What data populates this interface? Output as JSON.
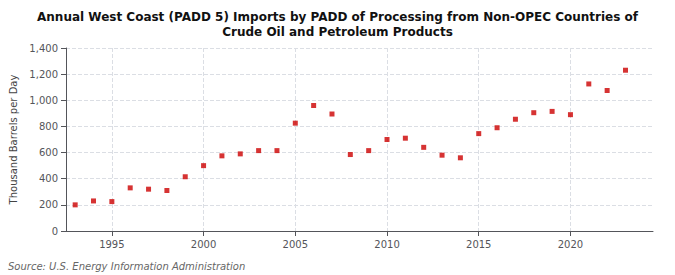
{
  "chart_data": {
    "type": "scatter",
    "title": "Annual West Coast (PADD 5) Imports by PADD of Processing from Non-OPEC Countries of\nCrude Oil and Petroleum Products",
    "ylabel": "Thousand Barrels per Day",
    "annotations": [
      "Source: U.S. Energy Information Administration"
    ],
    "x": [
      1993,
      1994,
      1995,
      1996,
      1997,
      1998,
      1999,
      2000,
      2001,
      2002,
      2003,
      2004,
      2005,
      2006,
      2007,
      2008,
      2009,
      2010,
      2011,
      2012,
      2013,
      2014,
      2015,
      2016,
      2017,
      2018,
      2019,
      2020,
      2021,
      2022,
      2023
    ],
    "values": [
      200,
      230,
      225,
      330,
      320,
      310,
      415,
      500,
      575,
      590,
      615,
      615,
      825,
      960,
      895,
      585,
      615,
      700,
      710,
      640,
      580,
      560,
      745,
      790,
      855,
      905,
      915,
      890,
      1125,
      1075,
      1230
    ],
    "color": "#cc0000",
    "marker": "square",
    "xlim": [
      1992.5,
      2024.5
    ],
    "xticks": [
      1995,
      2000,
      2005,
      2010,
      2015,
      2020
    ],
    "ylim": [
      0,
      1400
    ],
    "yticks": [
      0,
      200,
      400,
      600,
      800,
      {
        "value": 1000,
        "label": "1,000"
      },
      {
        "value": 1200,
        "label": "1,200"
      },
      {
        "value": 1400,
        "label": "1,400"
      }
    ],
    "grid": true
  }
}
